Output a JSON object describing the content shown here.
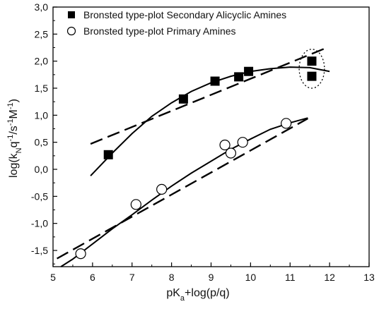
{
  "chart_data": {
    "type": "scatter",
    "title": "",
    "xlabel": {
      "main": "pK",
      "sub": "a",
      "tail": "+log(p/q)"
    },
    "ylabel": {
      "p1": "log(k",
      "s1": "N",
      "p2": "q",
      "u1": "-1",
      "p3": "/s",
      "u2": "-1",
      "p4": "M",
      "u3": "-1",
      "p5": ")"
    },
    "xlim": [
      5,
      13
    ],
    "ylim": [
      -1.8,
      3.0
    ],
    "x_ticks": [
      5,
      6,
      7,
      8,
      9,
      10,
      11,
      12,
      13
    ],
    "x_tick_labels": [
      "5",
      "6",
      "7",
      "8",
      "9",
      "10",
      "11",
      "12",
      "13"
    ],
    "y_ticks": [
      -1.5,
      -1.0,
      -0.5,
      0.0,
      0.5,
      1.0,
      1.5,
      2.0,
      2.5,
      3.0
    ],
    "y_tick_labels": [
      "-1,5",
      "-1,0",
      "-0,5",
      "0,0",
      "0,5",
      "1,0",
      "1,5",
      "2,0",
      "2,5",
      "3,0"
    ],
    "grid": false,
    "legend_position": "top-left",
    "series": [
      {
        "name": "Bronsted type-plot Secondary Alicyclic Amines",
        "marker": "filled-square",
        "color": "#000000",
        "x": [
          6.4,
          8.3,
          9.1,
          9.7,
          9.95,
          11.55,
          11.55
        ],
        "y": [
          0.27,
          1.3,
          1.63,
          1.71,
          1.81,
          2.0,
          1.72
        ]
      },
      {
        "name": "Bronsted type-plot Primary Amines",
        "marker": "open-circle",
        "color": "#000000",
        "x": [
          5.7,
          7.1,
          7.75,
          9.35,
          9.5,
          9.8,
          10.9
        ],
        "y": [
          -1.56,
          -0.65,
          -0.37,
          0.45,
          0.3,
          0.5,
          0.85
        ]
      }
    ],
    "fits": [
      {
        "style": "solid",
        "x": [
          5.95,
          6.5,
          7.0,
          7.5,
          8.0,
          8.5,
          9.0,
          9.5,
          10.0,
          10.5,
          11.0,
          11.5,
          12.0
        ],
        "y": [
          -0.12,
          0.3,
          0.66,
          0.98,
          1.23,
          1.44,
          1.6,
          1.72,
          1.81,
          1.86,
          1.89,
          1.88,
          1.81
        ]
      },
      {
        "style": "dashed",
        "x": [
          5.95,
          11.9
        ],
        "y": [
          0.47,
          2.24
        ]
      },
      {
        "style": "solid",
        "x": [
          5.2,
          5.5,
          6.0,
          6.5,
          7.0,
          7.5,
          8.0,
          8.5,
          9.0,
          9.5,
          10.0,
          10.5,
          11.0,
          11.45
        ],
        "y": [
          -1.8,
          -1.66,
          -1.38,
          -1.1,
          -0.84,
          -0.57,
          -0.31,
          -0.07,
          0.15,
          0.37,
          0.56,
          0.74,
          0.86,
          0.95
        ]
      },
      {
        "style": "dashed",
        "x": [
          5.1,
          11.45
        ],
        "y": [
          -1.65,
          0.94
        ]
      }
    ],
    "annotations": [
      {
        "type": "dotted-ellipse",
        "cx": 11.55,
        "cy": 1.86,
        "rx": 0.32,
        "ry": 0.36
      }
    ]
  }
}
